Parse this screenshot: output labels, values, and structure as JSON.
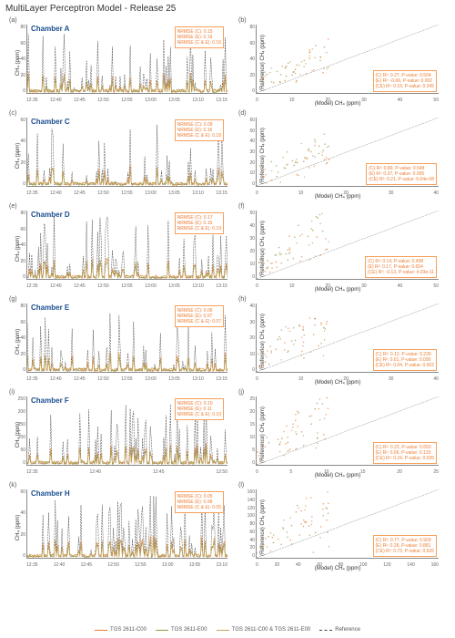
{
  "title": "MultiLayer Perceptron Model - Release 25",
  "colors": {
    "c": "#ed7d31",
    "e": "#8b9b3e",
    "ce": "#c9a05c",
    "ref": "#444",
    "border": "#888",
    "bg": "#ffffff",
    "box_border": "#f5a05c"
  },
  "chambers": [
    {
      "id": "A",
      "letter_l": "(a)",
      "letter_r": "(b)",
      "chamber_color": "#1a4d8f",
      "ymax": 80,
      "yticks": [
        0,
        20,
        40,
        60,
        80
      ],
      "xticks_l": [
        "12:35",
        "12:40",
        "12:45",
        "12:50",
        "12:55",
        "13:00",
        "13:05",
        "13:10",
        "13:15"
      ],
      "nrmse": {
        "c": "0.15",
        "e": "0.19",
        "ce": "0.16"
      },
      "r2": {
        "c": "0.27",
        "cp": "0.504",
        "e": "-0.06",
        "ep": "0.002",
        "ce": "0.19",
        "cep": "0.245"
      },
      "scatter_xmax": 50,
      "scatter_ymax": 80,
      "scatter_xticks": [
        0,
        10,
        20,
        30,
        40,
        50
      ],
      "scatter_yticks": [
        0,
        20,
        40,
        60,
        80
      ]
    },
    {
      "id": "C",
      "letter_l": "(c)",
      "letter_r": "(d)",
      "chamber_color": "#1a4d8f",
      "ymax": 60,
      "yticks": [
        0,
        20,
        40,
        60
      ],
      "xticks_l": [
        "12:35",
        "12:40",
        "12:45",
        "12:50",
        "12:55",
        "13:00",
        "13:05",
        "13:10",
        "13:15"
      ],
      "nrmse": {
        "c": "0.09",
        "e": "0.16",
        "ce": "0.18"
      },
      "r2": {
        "c": "0.80",
        "cp": "0.548",
        "e": "0.37",
        "ep": "0.005",
        "ce": "0.21",
        "cep": "6.04e-08"
      },
      "scatter_xmax": 40,
      "scatter_ymax": 60,
      "scatter_xticks": [
        0,
        10,
        20,
        30,
        40
      ],
      "scatter_yticks": [
        0,
        10,
        20,
        30,
        40,
        50,
        60
      ]
    },
    {
      "id": "D",
      "letter_l": "(e)",
      "letter_r": "(f)",
      "chamber_color": "#1a4d8f",
      "ymax": 80,
      "yticks": [
        0,
        20,
        40,
        60,
        80
      ],
      "xticks_l": [
        "12:35",
        "12:40",
        "12:45",
        "12:50",
        "12:55",
        "13:00",
        "13:05",
        "13:10",
        "13:15"
      ],
      "nrmse": {
        "c": "0.17",
        "e": "0.16",
        "ce": "0.19"
      },
      "r2": {
        "c": "0.14",
        "cp": "0.498",
        "e": "0.17",
        "ep": "0.654",
        "ce": "-0.13",
        "cep": "4.03e-11"
      },
      "scatter_xmax": 50,
      "scatter_ymax": 50,
      "scatter_xticks": [
        0,
        10,
        20,
        30,
        40,
        50
      ],
      "scatter_yticks": [
        0,
        10,
        20,
        30,
        40,
        50
      ]
    },
    {
      "id": "E",
      "letter_l": "(g)",
      "letter_r": "(h)",
      "chamber_color": "#1a4d8f",
      "ymax": 80,
      "yticks": [
        0,
        20,
        40,
        60,
        80
      ],
      "xticks_l": [
        "12:35",
        "12:40",
        "12:45",
        "12:50",
        "12:55",
        "13:00",
        "13:05",
        "13:10",
        "13:15"
      ],
      "nrmse": {
        "c": "0.06",
        "e": "0.07",
        "ce": "0.07"
      },
      "r2": {
        "c": "0.12",
        "cp": "0.239",
        "e": "0.01",
        "ep": "0.090",
        "ce": "0.04",
        "cep": "0.002"
      },
      "scatter_xmax": 40,
      "scatter_ymax": 40,
      "scatter_xticks": [
        0,
        10,
        20,
        30,
        40
      ],
      "scatter_yticks": [
        0,
        10,
        20,
        30,
        40
      ]
    },
    {
      "id": "F",
      "letter_l": "(i)",
      "letter_r": "(j)",
      "chamber_color": "#1a4d8f",
      "ymax": 250,
      "yticks": [
        0,
        50,
        100,
        150,
        200,
        250
      ],
      "xticks_l": [
        "12:35",
        "12:40",
        "12:45",
        "12:50"
      ],
      "nrmse": {
        "c": "0.10",
        "e": "0.11",
        "ce": "0.10"
      },
      "r2": {
        "c": "0.22",
        "cp": "0.653",
        "e": "0.06",
        "ep": "0.133",
        "ce": "0.24",
        "cep": "0.035"
      },
      "scatter_xmax": 25,
      "scatter_ymax": 25,
      "scatter_xticks": [
        0,
        5,
        10,
        15,
        20,
        25
      ],
      "scatter_yticks": [
        0,
        5,
        10,
        15,
        20,
        25
      ]
    },
    {
      "id": "H",
      "letter_l": "(k)",
      "letter_r": "(l)",
      "chamber_color": "#1a4d8f",
      "ymax": 60,
      "yticks": [
        0,
        20,
        40,
        60
      ],
      "xticks_l": [
        "12:35",
        "12:40",
        "12:45",
        "12:50",
        "12:55",
        "13:00",
        "13:05",
        "13:10"
      ],
      "nrmse": {
        "c": "0.05",
        "e": "0.08",
        "ce": "0.05"
      },
      "r2": {
        "c": "0.77",
        "cp": "0.909",
        "e": "0.28",
        "ep": "0.881",
        "ce": "0.73",
        "cep": "0.526"
      },
      "scatter_xmax": 160,
      "scatter_ymax": 160,
      "scatter_xticks": [
        0,
        20,
        40,
        60,
        80,
        100,
        120,
        140,
        160
      ],
      "scatter_yticks": [
        0,
        20,
        40,
        60,
        80,
        100,
        120,
        140,
        160
      ]
    }
  ],
  "legend_items": [
    {
      "label": "TGS 2611-C00",
      "color": "#ed7d31",
      "dash": ""
    },
    {
      "label": "TGS 2611-E00",
      "color": "#8b9b3e",
      "dash": ""
    },
    {
      "label": "TGS 2611-C00 & TGS 2611-E00",
      "color": "#c9a05c",
      "dash": ""
    },
    {
      "label": "Reference",
      "color": "#444",
      "dash": "3,2"
    }
  ],
  "ylabel_ts": "CH₄ (ppm)",
  "ylabel_sc": "(Reference) CH₄ (ppm)",
  "xlabel_sc": "(Model) CH₄ (ppm)"
}
